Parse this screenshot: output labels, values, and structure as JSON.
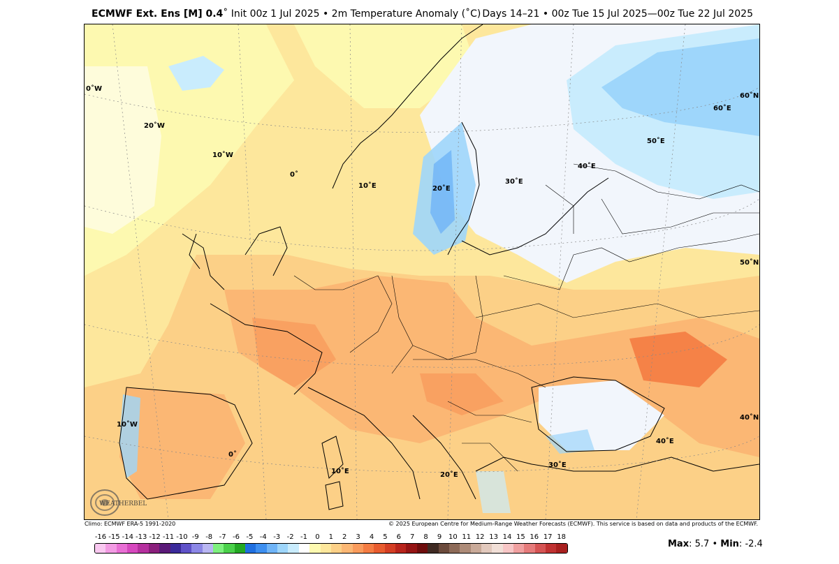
{
  "header": {
    "model": "ECMWF Ext. Ens [M] 0.4",
    "init": "˚ Init 00z 1 Jul 2025 • 2m Temperature Anomaly (˚C)",
    "valid": "Days 14–21 • 00z Tue 15 Jul 2025—00z Tue 22 Jul 2025"
  },
  "footer": {
    "climo": "Climo: ECMWF ERA-5 1991-2020",
    "copyright": "© 2025 European Centre for Medium-Range Weather Forecasts (ECMWF). This service is based on data and products of the ECMWF."
  },
  "stats": {
    "max_label": "Max",
    "max_value": "5.7",
    "sep": "•",
    "min_label": "Min",
    "min_value": "-2.4"
  },
  "logo": {
    "text": "WEATHERBELL"
  },
  "map_labels": [
    {
      "text": "0˚W"
    },
    {
      "text": "20˚W"
    },
    {
      "text": "10˚W"
    },
    {
      "text": "0˚"
    },
    {
      "text": "10˚E"
    },
    {
      "text": "20˚E"
    },
    {
      "text": "30˚E"
    },
    {
      "text": "40˚E"
    },
    {
      "text": "50˚E"
    },
    {
      "text": "60˚E"
    },
    {
      "text": "60˚N"
    },
    {
      "text": "50˚N"
    },
    {
      "text": "40˚N"
    },
    {
      "text": "40˚E"
    },
    {
      "text": "30˚E"
    },
    {
      "text": "20˚E"
    },
    {
      "text": "10˚E"
    },
    {
      "text": "0˚"
    },
    {
      "text": "10˚W"
    }
  ],
  "colorbar": {
    "labels": [
      "-16",
      "-15",
      "-14",
      "-13",
      "-12",
      "-11",
      "-10",
      "-9",
      "-8",
      "-7",
      "-6",
      "-5",
      "-4",
      "-3",
      "-2",
      "-1",
      "0",
      "1",
      "2",
      "3",
      "4",
      "5",
      "6",
      "7",
      "8",
      "9",
      "10",
      "11",
      "12",
      "13",
      "14",
      "15",
      "16",
      "17",
      "18"
    ],
    "colors": [
      "#f9c8f0",
      "#f29be3",
      "#e86fd4",
      "#d648be",
      "#b5309e",
      "#8a1f7c",
      "#5a1a78",
      "#3b2a9a",
      "#5f52c8",
      "#8c87e6",
      "#b9b6f2",
      "#7ef07e",
      "#4ad04a",
      "#23a823",
      "#1f6fe0",
      "#3d8ff0",
      "#6fb4f7",
      "#9ed6fb",
      "#c9ecfd",
      "#ffffff",
      "#fdf9b0",
      "#fde79c",
      "#fcd087",
      "#fbb774",
      "#f99b5c",
      "#f47c43",
      "#e85c2f",
      "#d43e24",
      "#b8241c",
      "#951414",
      "#6e0d0d",
      "#3f2a23",
      "#6b4a3c",
      "#8d6a58",
      "#ad8b78",
      "#c9aa99",
      "#e2c9bd",
      "#f1dfd7",
      "#f7c6c6",
      "#f0a0a0",
      "#e57b7b",
      "#d55454",
      "#c03232",
      "#a8201f"
    ]
  }
}
